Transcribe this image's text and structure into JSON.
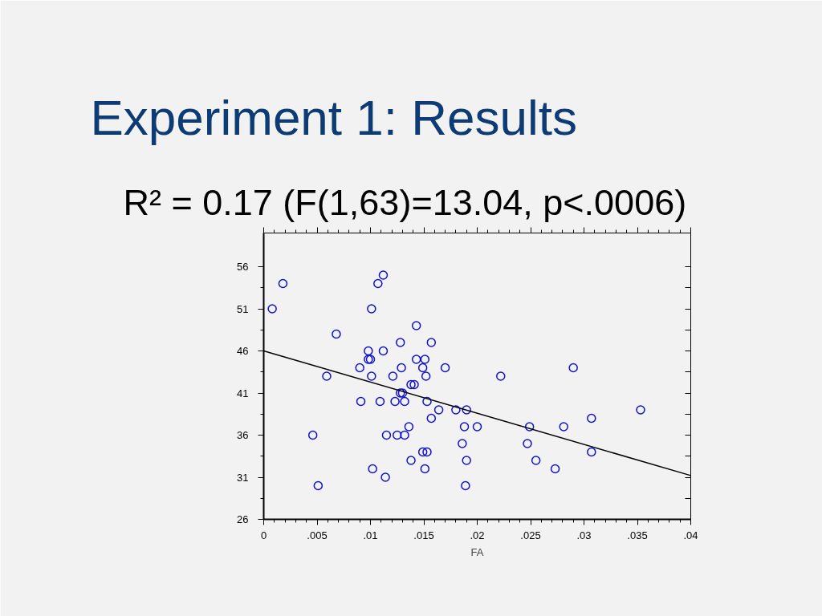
{
  "chart_data": {
    "type": "scatter",
    "title": "Experiment 1: Results",
    "subtitle": "R² = 0.17 (F(1,63)=13.04, p<.0006)",
    "xlabel": "FA",
    "xlim": [
      0,
      0.04
    ],
    "xticks": [
      0,
      {
        "value": 0.005,
        "label": ".005"
      },
      {
        "value": 0.01,
        "label": ".01"
      },
      {
        "value": 0.015,
        "label": ".015"
      },
      {
        "value": 0.02,
        "label": ".02"
      },
      {
        "value": 0.025,
        "label": ".025"
      },
      {
        "value": 0.03,
        "label": ".03"
      },
      {
        "value": 0.035,
        "label": ".035"
      },
      {
        "value": 0.04,
        "label": ".04"
      }
    ],
    "ylim": [
      26,
      60
    ],
    "yticks": [
      26,
      31,
      36,
      41,
      46,
      51,
      56
    ],
    "grid": false,
    "series": [
      {
        "color": "#1010d0",
        "marker": "circle",
        "x": [
          0.0008,
          0.0018,
          0.0068,
          0.0059,
          0.0046,
          0.0051,
          0.0101,
          0.0107,
          0.0112,
          0.0143,
          0.0128,
          0.0157,
          0.0098,
          0.0112,
          0.0098,
          0.01,
          0.0143,
          0.0151,
          0.009,
          0.0129,
          0.0149,
          0.017,
          0.0101,
          0.0121,
          0.0152,
          0.0138,
          0.0141,
          0.0128,
          0.013,
          0.0091,
          0.0109,
          0.0123,
          0.0132,
          0.0153,
          0.0164,
          0.018,
          0.019,
          0.0157,
          0.0136,
          0.0188,
          0.02,
          0.0115,
          0.0125,
          0.0132,
          0.0186,
          0.0149,
          0.0153,
          0.0138,
          0.019,
          0.0102,
          0.0151,
          0.0114,
          0.0189,
          0.0222,
          0.029,
          0.0353,
          0.0307,
          0.0249,
          0.0281,
          0.0247,
          0.0307,
          0.0255,
          0.0273
        ],
        "values": [
          51,
          54,
          48,
          43,
          36,
          30,
          51,
          54,
          55,
          49,
          47,
          47,
          46,
          46,
          45,
          45,
          45,
          45,
          44,
          44,
          44,
          44,
          43,
          43,
          43,
          42,
          42,
          41,
          41,
          40,
          40,
          40,
          40,
          40,
          39,
          39,
          39,
          38,
          37,
          37,
          37,
          36,
          36,
          36,
          35,
          34,
          34,
          33,
          33,
          32,
          32,
          31,
          30,
          43,
          44,
          39,
          38,
          37,
          37,
          35,
          34,
          33,
          32
        ]
      },
      {
        "type": "line",
        "color": "#000000",
        "marker": "none",
        "x": [
          0,
          0.04
        ],
        "values": [
          46,
          31.2
        ]
      }
    ]
  }
}
